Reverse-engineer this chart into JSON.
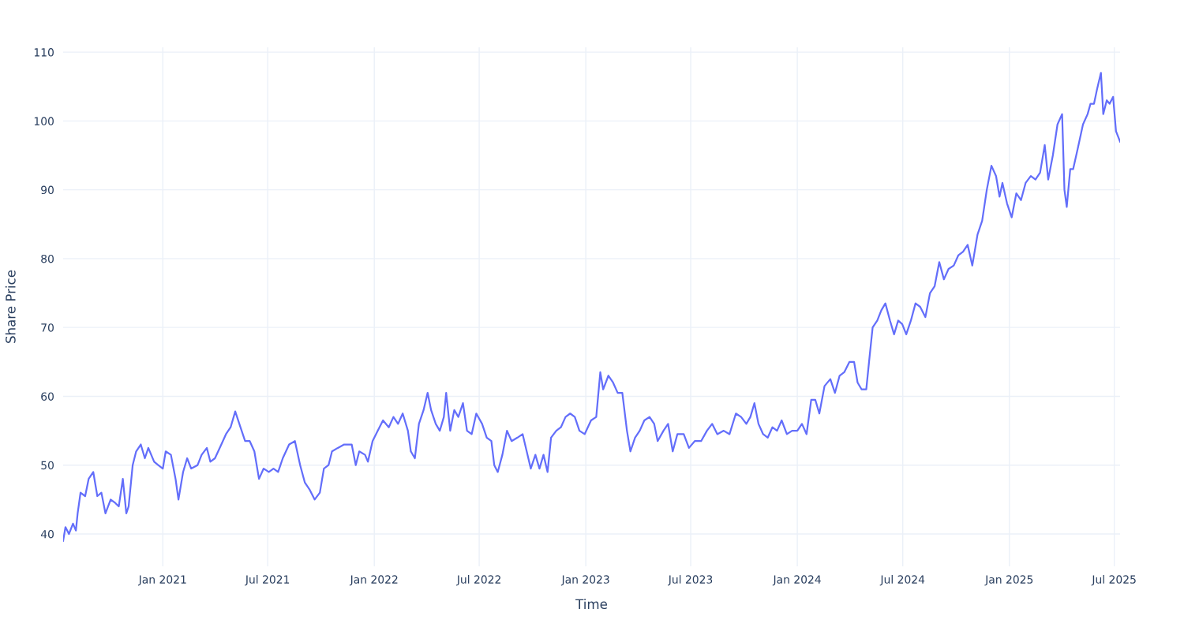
{
  "chart_data": {
    "type": "line",
    "xlabel": "Time",
    "ylabel": "Share Price",
    "x": [
      "2020-07-13",
      "2020-07-17",
      "2020-07-23",
      "2020-07-30",
      "2020-08-04",
      "2020-08-07",
      "2020-08-12",
      "2020-08-20",
      "2020-08-26",
      "2020-09-03",
      "2020-09-10",
      "2020-09-17",
      "2020-09-24",
      "2020-10-03",
      "2020-10-11",
      "2020-10-17",
      "2020-10-24",
      "2020-10-30",
      "2020-11-03",
      "2020-11-10",
      "2020-11-16",
      "2020-11-24",
      "2020-12-01",
      "2020-12-07",
      "2020-12-17",
      "2020-12-24",
      "2021-01-01",
      "2021-01-06",
      "2021-01-15",
      "2021-01-23",
      "2021-01-28",
      "2021-02-05",
      "2021-02-12",
      "2021-02-19",
      "2021-03-02",
      "2021-03-09",
      "2021-03-18",
      "2021-03-24",
      "2021-04-01",
      "2021-04-12",
      "2021-04-20",
      "2021-04-28",
      "2021-05-06",
      "2021-05-15",
      "2021-05-23",
      "2021-05-31",
      "2021-06-08",
      "2021-06-16",
      "2021-06-24",
      "2021-07-03",
      "2021-07-11",
      "2021-07-19",
      "2021-07-27",
      "2021-08-07",
      "2021-08-17",
      "2021-08-26",
      "2021-09-03",
      "2021-09-11",
      "2021-09-20",
      "2021-09-29",
      "2021-10-06",
      "2021-10-14",
      "2021-10-20",
      "2021-10-30",
      "2021-11-10",
      "2021-11-23",
      "2021-11-30",
      "2021-12-06",
      "2021-12-16",
      "2021-12-21",
      "2021-12-29",
      "2022-01-07",
      "2022-01-16",
      "2022-01-26",
      "2022-02-03",
      "2022-02-11",
      "2022-02-19",
      "2022-02-28",
      "2022-03-05",
      "2022-03-12",
      "2022-03-19",
      "2022-03-27",
      "2022-04-03",
      "2022-04-09",
      "2022-04-17",
      "2022-04-24",
      "2022-05-01",
      "2022-05-05",
      "2022-05-12",
      "2022-05-19",
      "2022-05-26",
      "2022-06-03",
      "2022-06-10",
      "2022-06-18",
      "2022-06-26",
      "2022-07-06",
      "2022-07-14",
      "2022-07-22",
      "2022-07-27",
      "2022-08-02",
      "2022-08-10",
      "2022-08-18",
      "2022-08-26",
      "2022-09-05",
      "2022-09-14",
      "2022-09-21",
      "2022-09-28",
      "2022-10-06",
      "2022-10-13",
      "2022-10-20",
      "2022-10-27",
      "2022-11-02",
      "2022-11-11",
      "2022-11-19",
      "2022-11-27",
      "2022-12-05",
      "2022-12-13",
      "2022-12-21",
      "2022-12-30",
      "2023-01-10",
      "2023-01-19",
      "2023-01-26",
      "2023-01-31",
      "2023-02-09",
      "2023-02-17",
      "2023-02-25",
      "2023-03-05",
      "2023-03-13",
      "2023-03-19",
      "2023-03-27",
      "2023-04-04",
      "2023-04-12",
      "2023-04-21",
      "2023-04-29",
      "2023-05-05",
      "2023-05-15",
      "2023-05-23",
      "2023-05-31",
      "2023-06-08",
      "2023-06-19",
      "2023-06-28",
      "2023-07-08",
      "2023-07-19",
      "2023-07-29",
      "2023-08-07",
      "2023-08-16",
      "2023-08-27",
      "2023-09-06",
      "2023-09-17",
      "2023-09-26",
      "2023-10-05",
      "2023-10-12",
      "2023-10-19",
      "2023-10-26",
      "2023-11-03",
      "2023-11-11",
      "2023-11-19",
      "2023-11-27",
      "2023-12-05",
      "2023-12-14",
      "2023-12-23",
      "2024-01-01",
      "2024-01-09",
      "2024-01-17",
      "2024-01-25",
      "2024-02-01",
      "2024-02-08",
      "2024-02-17",
      "2024-02-27",
      "2024-03-06",
      "2024-03-14",
      "2024-03-22",
      "2024-03-31",
      "2024-04-08",
      "2024-04-14",
      "2024-04-21",
      "2024-04-29",
      "2024-05-05",
      "2024-05-10",
      "2024-05-18",
      "2024-05-25",
      "2024-06-01",
      "2024-06-09",
      "2024-06-16",
      "2024-06-23",
      "2024-06-30",
      "2024-07-07",
      "2024-07-15",
      "2024-07-23",
      "2024-07-31",
      "2024-08-09",
      "2024-08-17",
      "2024-08-25",
      "2024-09-02",
      "2024-09-10",
      "2024-09-18",
      "2024-09-27",
      "2024-10-05",
      "2024-10-13",
      "2024-10-21",
      "2024-10-29",
      "2024-11-07",
      "2024-11-15",
      "2024-11-23",
      "2024-12-01",
      "2024-12-09",
      "2024-12-15",
      "2024-12-20",
      "2024-12-28",
      "2025-01-05",
      "2025-01-13",
      "2025-01-21",
      "2025-01-29",
      "2025-02-07",
      "2025-02-15",
      "2025-02-23",
      "2025-03-03",
      "2025-03-09",
      "2025-03-17",
      "2025-03-25",
      "2025-04-02",
      "2025-04-06",
      "2025-04-10",
      "2025-04-16",
      "2025-04-21",
      "2025-04-29",
      "2025-05-08",
      "2025-05-16",
      "2025-05-21",
      "2025-05-27",
      "2025-06-01",
      "2025-06-08",
      "2025-06-12",
      "2025-06-18",
      "2025-06-23",
      "2025-06-29",
      "2025-07-04",
      "2025-07-11"
    ],
    "series": [
      {
        "color": "#636efa",
        "values": [
          39,
          41,
          40,
          41.5,
          40.5,
          43,
          46,
          45.5,
          48,
          49,
          45.5,
          46,
          43,
          45,
          44.5,
          44,
          48,
          43,
          44,
          50,
          52,
          53,
          51,
          52.5,
          50.5,
          50,
          49.5,
          52,
          51.5,
          48,
          45,
          49,
          51,
          49.5,
          50,
          51.5,
          52.5,
          50.5,
          51,
          53,
          54.5,
          55.5,
          57.8,
          55.5,
          53.5,
          53.5,
          52,
          48,
          49.5,
          49,
          49.5,
          49,
          51,
          53,
          53.5,
          50,
          47.5,
          46.5,
          45,
          46,
          49.5,
          50,
          52,
          52.5,
          53,
          53,
          50,
          52,
          51.5,
          50.5,
          53.5,
          55,
          56.5,
          55.5,
          57,
          56,
          57.5,
          55,
          52,
          51,
          56,
          58,
          60.5,
          58,
          56,
          55,
          57,
          60.5,
          55,
          58,
          57,
          59,
          55,
          54.5,
          57.5,
          56,
          54,
          53.5,
          50,
          49,
          51.5,
          55,
          53.5,
          54,
          54.5,
          52,
          49.5,
          51.5,
          49.5,
          51.5,
          49,
          54,
          55,
          55.5,
          57,
          57.5,
          57,
          55,
          54.5,
          56.5,
          57,
          63.5,
          61,
          63,
          62,
          60.5,
          60.5,
          55,
          52,
          54,
          55,
          56.5,
          57,
          56,
          53.5,
          55,
          56,
          52,
          54.5,
          54.5,
          52.5,
          53.5,
          53.5,
          55,
          56,
          54.5,
          55,
          54.5,
          57.5,
          57,
          56,
          57,
          59,
          56,
          54.5,
          54,
          55.5,
          55,
          56.5,
          54.5,
          55,
          55,
          56,
          54.5,
          59.5,
          59.5,
          57.5,
          61.5,
          62.5,
          60.5,
          63,
          63.5,
          65,
          65,
          62,
          61,
          61,
          66,
          70,
          71,
          72.5,
          73.5,
          71,
          69,
          71,
          70.5,
          69,
          71,
          73.5,
          73,
          71.5,
          75,
          76,
          79.5,
          77,
          78.5,
          79,
          80.5,
          81,
          82,
          79,
          83.5,
          85.5,
          90,
          93.5,
          92,
          89,
          91,
          88,
          86,
          89.5,
          88.5,
          91,
          92,
          91.5,
          92.5,
          96.5,
          91.5,
          95,
          99.5,
          101,
          90,
          87.5,
          93,
          93,
          96,
          99.5,
          101,
          102.5,
          102.5,
          104.5,
          107,
          101,
          103,
          102.5,
          103.5,
          98.5,
          97
        ]
      }
    ],
    "xlim": [
      "2020-07-13",
      "2025-07-11"
    ],
    "xticks": [
      {
        "value": "2021-01-01",
        "label": "Jan 2021"
      },
      {
        "value": "2021-07-01",
        "label": "Jul 2021"
      },
      {
        "value": "2022-01-01",
        "label": "Jan 2022"
      },
      {
        "value": "2022-07-01",
        "label": "Jul 2022"
      },
      {
        "value": "2023-01-01",
        "label": "Jan 2023"
      },
      {
        "value": "2023-07-01",
        "label": "Jul 2023"
      },
      {
        "value": "2024-01-01",
        "label": "Jan 2024"
      },
      {
        "value": "2024-07-01",
        "label": "Jul 2024"
      },
      {
        "value": "2025-01-01",
        "label": "Jan 2025"
      },
      {
        "value": "2025-07-01",
        "label": "Jul 2025"
      }
    ],
    "ylim": [
      35.3,
      110.7
    ],
    "yticks": [
      40,
      50,
      60,
      70,
      80,
      90,
      100,
      110
    ],
    "grid": true,
    "marker": "none",
    "line_style": "solid"
  }
}
